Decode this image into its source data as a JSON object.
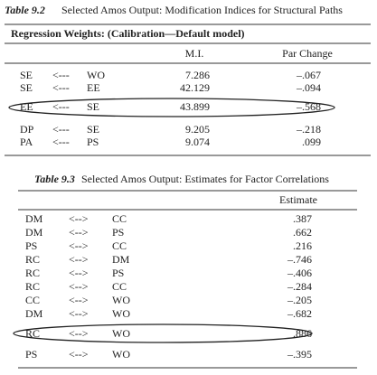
{
  "table1": {
    "label": "Table 9.2",
    "title": "Selected Amos Output: Modification Indices for Structural Paths",
    "subtitle": "Regression Weights: (Calibration—Default model)",
    "columns": [
      "M.I.",
      "Par Change"
    ],
    "rows": [
      [
        "SE",
        "<---",
        "WO",
        "7.286",
        "–.067"
      ],
      [
        "SE",
        "<---",
        "EE",
        "42.129",
        "–.094"
      ],
      [
        "EE",
        "<---",
        "SE",
        "43.899",
        "–.568"
      ],
      [
        "DP",
        "<---",
        "SE",
        "9.205",
        "–.218"
      ],
      [
        "PA",
        "<---",
        "PS",
        "9.074",
        ".099"
      ]
    ]
  },
  "table2": {
    "label": "Table 9.3",
    "title": "Selected Amos Output: Estimates for Factor Correlations",
    "columns": [
      "Estimate"
    ],
    "rows": [
      [
        "DM",
        "<-->",
        "CC",
        ".387"
      ],
      [
        "DM",
        "<-->",
        "PS",
        ".662"
      ],
      [
        "PS",
        "<-->",
        "CC",
        ".216"
      ],
      [
        "RC",
        "<-->",
        "DM",
        "–.746"
      ],
      [
        "RC",
        "<-->",
        "PS",
        "–.406"
      ],
      [
        "RC",
        "<-->",
        "CC",
        "–.284"
      ],
      [
        "CC",
        "<-->",
        "WO",
        "–.205"
      ],
      [
        "DM",
        "<-->",
        "WO",
        "–.682"
      ],
      [
        "RC",
        "<-->",
        "WO",
        ".886"
      ],
      [
        "PS",
        "<-->",
        "WO",
        "–.395"
      ]
    ]
  }
}
